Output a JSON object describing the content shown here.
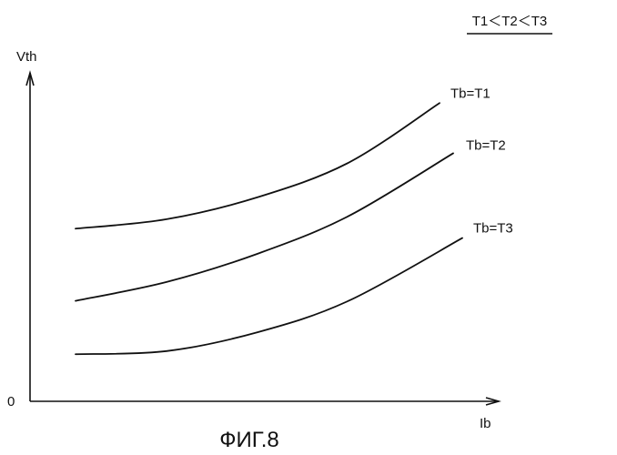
{
  "figure": {
    "caption": "ФИГ.8",
    "condition_note": "T1＜T2＜T3"
  },
  "chart_data": {
    "type": "line",
    "title": "",
    "xlabel": "Ib",
    "ylabel": "Vth",
    "origin_label": "0",
    "xlim": [
      0,
      10
    ],
    "ylim": [
      0,
      10
    ],
    "grid": false,
    "series": [
      {
        "name": "Tb=T1",
        "x": [
          1,
          3,
          5,
          7,
          9
        ],
        "y": [
          5.5,
          5.8,
          6.5,
          7.6,
          9.5
        ]
      },
      {
        "name": "Tb=T2",
        "x": [
          1,
          3,
          5,
          7,
          9.3
        ],
        "y": [
          3.2,
          3.8,
          4.7,
          5.9,
          7.9
        ]
      },
      {
        "name": "Tb=T3",
        "x": [
          1,
          3,
          5,
          7,
          9.5
        ],
        "y": [
          1.5,
          1.6,
          2.2,
          3.2,
          5.2
        ]
      }
    ]
  }
}
